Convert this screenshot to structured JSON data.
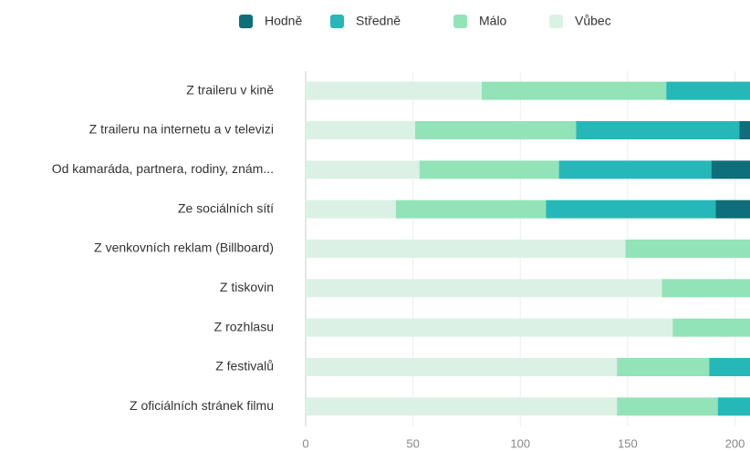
{
  "chart_data": {
    "type": "stacked-bar-horizontal",
    "categories": [
      "Z traileru v kině",
      "Z traileru na internetu a v televizi",
      "Od kamaráda, partnera, rodiny, znám...",
      "Ze sociálních sítí",
      "Z venkovních reklam (Billboard)",
      "Z tiskovin",
      "Z rozhlasu",
      "Z festivalů",
      "Z oficiálních stránek filmu"
    ],
    "series": [
      {
        "name": "Hodně",
        "color": "#0e6e7a",
        "values": [
          null,
          5,
          18,
          16,
          null,
          null,
          null,
          null,
          null
        ]
      },
      {
        "name": "Středně",
        "color": "#26b8b8",
        "values": [
          39,
          76,
          71,
          79,
          null,
          null,
          null,
          19,
          15
        ]
      },
      {
        "name": "Málo",
        "color": "#93e3b8",
        "values": [
          86,
          75,
          65,
          70,
          58,
          41,
          36,
          43,
          47
        ]
      },
      {
        "name": "Vůbec",
        "color": "#dcf1e6",
        "values": [
          82,
          51,
          53,
          42,
          149,
          166,
          171,
          145,
          145
        ]
      }
    ],
    "xlim": [
      0,
      207
    ],
    "xticks": [
      0,
      50,
      100,
      150,
      200
    ],
    "grid": true,
    "legend": "top"
  }
}
